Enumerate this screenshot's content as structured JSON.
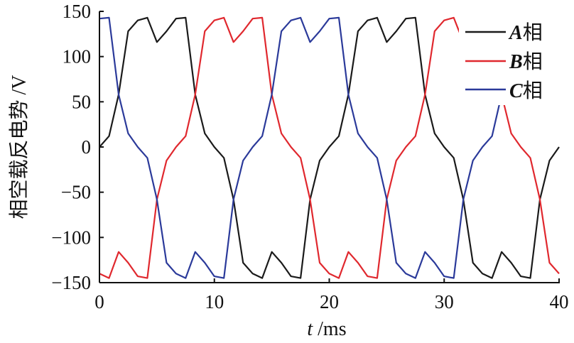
{
  "chart_data": {
    "type": "line",
    "title": "",
    "xlabel": {
      "var": "t",
      "unit": " /ms"
    },
    "ylabel": "相空载反电势 /V",
    "xlim": [
      0,
      40
    ],
    "ylim": [
      -150,
      150
    ],
    "xticks": [
      0,
      10,
      20,
      30,
      40
    ],
    "yticks": [
      -150,
      -100,
      -50,
      0,
      50,
      100,
      150
    ],
    "xtick_labels": [
      "0",
      "10",
      "20",
      "30",
      "40"
    ],
    "ytick_labels": [
      "−150",
      "−100",
      "−50",
      "0",
      "50",
      "100",
      "150"
    ],
    "grid": false,
    "legend_position": "top-right",
    "x_step": 0.8333,
    "series": [
      {
        "name": "A相",
        "letter": "A",
        "suffix": "相",
        "color": "#1a1a1a",
        "values": [
          0,
          12,
          58,
          128,
          140,
          143,
          116,
          128,
          142,
          143,
          58,
          15,
          0,
          -12,
          -58,
          -128,
          -140,
          -145,
          -116,
          -128,
          -143,
          -145,
          -58,
          -15,
          0,
          12,
          58,
          128,
          140,
          143,
          116,
          128,
          142,
          143,
          58,
          15,
          0,
          -12,
          -58,
          -128,
          -140,
          -145,
          -116,
          -128,
          -143,
          -145,
          -58,
          -15,
          0
        ]
      },
      {
        "name": "B相",
        "letter": "B",
        "suffix": "相",
        "color": "#e0282e",
        "values": [
          -140,
          -145,
          -116,
          -128,
          -143,
          -145,
          -58,
          -15,
          0,
          12,
          58,
          128,
          140,
          143,
          116,
          128,
          142,
          143,
          58,
          15,
          0,
          -12,
          -58,
          -128,
          -140,
          -145,
          -116,
          -128,
          -143,
          -145,
          -58,
          -15,
          0,
          12,
          58,
          128,
          140,
          143,
          116,
          128,
          142,
          143,
          58,
          15,
          0,
          -12,
          -58,
          -128,
          -140
        ]
      },
      {
        "name": "C相",
        "letter": "C",
        "suffix": "相",
        "color": "#2b3a9a",
        "values": [
          142,
          143,
          58,
          15,
          0,
          -12,
          -58,
          -128,
          -140,
          -145,
          -116,
          -128,
          -143,
          -145,
          -58,
          -15,
          0,
          12,
          58,
          128,
          140,
          143,
          116,
          128,
          142,
          143,
          58,
          15,
          0,
          -12,
          -58,
          -128,
          -140,
          -145,
          -116,
          -128,
          -143,
          -145,
          -58,
          -15,
          0,
          12,
          58,
          128,
          140,
          143,
          116,
          128,
          142
        ]
      }
    ]
  }
}
